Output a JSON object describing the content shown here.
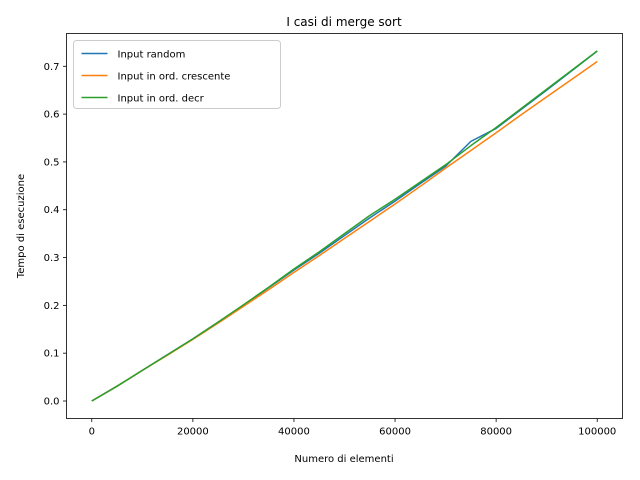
{
  "chart_data": {
    "type": "line",
    "title": "I casi di merge sort",
    "xlabel": "Numero di elementi",
    "ylabel": "Tempo di esecuzione",
    "xlim": [
      -5000,
      105000
    ],
    "ylim": [
      -0.0366,
      0.7686
    ],
    "xticks": [
      0,
      20000,
      40000,
      60000,
      80000,
      100000
    ],
    "yticks": [
      0.0,
      0.1,
      0.2,
      0.3,
      0.4,
      0.5,
      0.6,
      0.7
    ],
    "xtick_labels": [
      "0",
      "20000",
      "40000",
      "60000",
      "80000",
      "100000"
    ],
    "ytick_labels": [
      "0.0",
      "0.1",
      "0.2",
      "0.3",
      "0.4",
      "0.5",
      "0.6",
      "0.7"
    ],
    "grid": false,
    "legend_position": "top-left",
    "x": [
      0,
      5000,
      10000,
      15000,
      20000,
      25000,
      30000,
      35000,
      40000,
      45000,
      50000,
      55000,
      60000,
      65000,
      70000,
      75000,
      80000,
      85000,
      90000,
      95000,
      100000
    ],
    "series": [
      {
        "name": "Input random",
        "color": "#1f77b4",
        "values": [
          0.0,
          0.031,
          0.064,
          0.097,
          0.13,
          0.165,
          0.2,
          0.237,
          0.274,
          0.309,
          0.346,
          0.383,
          0.418,
          0.455,
          0.491,
          0.543,
          0.57,
          0.61,
          0.65,
          0.691,
          0.732
        ]
      },
      {
        "name": "Input in ord. crescente",
        "color": "#ff7f0e",
        "values": [
          0.0,
          0.031,
          0.064,
          0.096,
          0.129,
          0.163,
          0.198,
          0.233,
          0.269,
          0.304,
          0.34,
          0.376,
          0.412,
          0.449,
          0.487,
          0.524,
          0.561,
          0.599,
          0.636,
          0.673,
          0.71
        ]
      },
      {
        "name": "Input in ord. decr",
        "color": "#2ca02c",
        "values": [
          0.0,
          0.031,
          0.064,
          0.097,
          0.13,
          0.165,
          0.201,
          0.238,
          0.276,
          0.312,
          0.35,
          0.388,
          0.422,
          0.458,
          0.494,
          0.534,
          0.572,
          0.612,
          0.652,
          0.692,
          0.732
        ]
      }
    ]
  }
}
